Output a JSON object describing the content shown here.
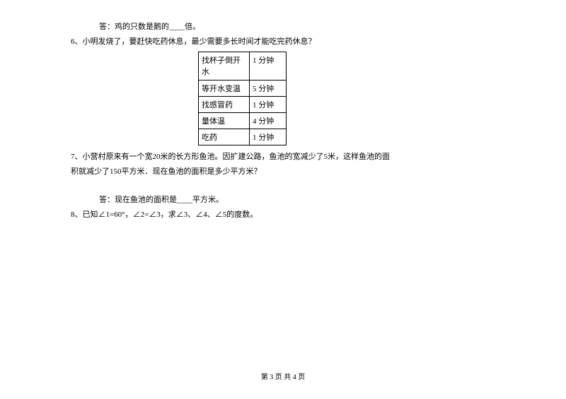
{
  "q5_answer": "答：鸡的只数是鹅的____倍。",
  "q6_text": "6、小明发烧了，要赶快吃药休息，最少需要多长时间才能吃完药休息？",
  "table": {
    "rows": [
      {
        "activity": "找杯子倒开水",
        "time": "1 分钟",
        "tall": true
      },
      {
        "activity": "等开水变温",
        "time": "5 分钟",
        "tall": false
      },
      {
        "activity": "找感冒药",
        "time": "1 分钟",
        "tall": false
      },
      {
        "activity": "量体温",
        "time": "4 分钟",
        "tall": false
      },
      {
        "activity": "吃药",
        "time": "1 分钟",
        "tall": false
      }
    ]
  },
  "q7_line1": "7、小营村原来有一个宽20米的长方形鱼池。因扩建公路，鱼池的宽减少了5米，这样鱼池的面",
  "q7_line2": "积就减少了150平方米．现在鱼池的面积是多少平方米？",
  "q7_answer": "答：现在鱼池的面积是____平方米。",
  "q8_text": "8、已知∠1=60°，∠2=∠3，求∠3、∠4、∠5的度数。",
  "footer": "第 3 页 共 4 页"
}
